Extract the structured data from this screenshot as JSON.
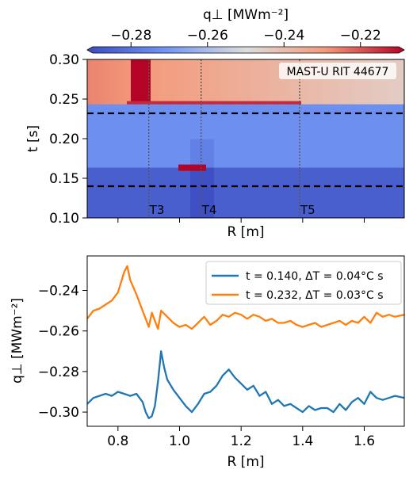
{
  "chart_data": [
    {
      "type": "heatmap",
      "title": "",
      "annotation": "MAST-U RIT 44677",
      "xlabel": "R [m]",
      "ylabel": "t [s]",
      "xlim": [
        0.7,
        1.73
      ],
      "ylim": [
        0.1,
        0.3
      ],
      "yticks": [
        0.1,
        0.15,
        0.2,
        0.25,
        0.3
      ],
      "ytick_labels": [
        "0.10",
        "0.15",
        "0.20",
        "0.25",
        "0.30"
      ],
      "colorbar": {
        "label": "q⊥ [MWm⁻²]",
        "range": [
          -0.29,
          -0.21
        ],
        "ticks": [
          -0.28,
          -0.26,
          -0.24,
          -0.22
        ],
        "tick_labels": [
          "−0.28",
          "−0.26",
          "−0.24",
          "−0.22"
        ],
        "colormap": "coolwarm",
        "colors": [
          "#3b4cc0",
          "#dddddd",
          "#b40426"
        ]
      },
      "dashed_lines_t": [
        0.14,
        0.232
      ],
      "markers": [
        {
          "label": "T3",
          "R": 0.9
        },
        {
          "label": "T4",
          "R": 1.07
        },
        {
          "label": "T5",
          "R": 1.39
        }
      ],
      "bands": [
        {
          "t_range": [
            0.1,
            0.163
          ],
          "level": -0.285
        },
        {
          "t_range": [
            0.163,
            0.245
          ],
          "level": -0.272
        },
        {
          "t_range": [
            0.245,
            0.3
          ],
          "level": -0.245
        }
      ],
      "hot_spots": [
        {
          "R_range": [
            0.84,
            0.9
          ],
          "t_range": [
            0.245,
            0.3
          ],
          "value": -0.21
        },
        {
          "R_range": [
            0.83,
            1.4
          ],
          "t_range": [
            0.243,
            0.249
          ],
          "value": -0.215
        },
        {
          "R_range": [
            1.0,
            1.09
          ],
          "t_range": [
            0.161,
            0.168
          ],
          "value": -0.21
        }
      ]
    },
    {
      "type": "line",
      "xlabel": "R [m]",
      "ylabel": "q⊥ [MWm⁻²]",
      "xlim": [
        0.7,
        1.73
      ],
      "ylim": [
        -0.307,
        -0.223
      ],
      "xticks": [
        0.8,
        1.0,
        1.2,
        1.4,
        1.6
      ],
      "xtick_labels": [
        "0.8",
        "1.0",
        "1.2",
        "1.4",
        "1.6"
      ],
      "yticks": [
        -0.3,
        -0.28,
        -0.26,
        -0.24
      ],
      "ytick_labels": [
        "−0.30",
        "−0.28",
        "−0.26",
        "−0.24"
      ],
      "legend_position": "top-right",
      "series": [
        {
          "name": "t = 0.140, ΔT = 0.04°C s",
          "color": "#1f77b4",
          "x": [
            0.7,
            0.72,
            0.74,
            0.76,
            0.78,
            0.8,
            0.82,
            0.84,
            0.86,
            0.88,
            0.89,
            0.9,
            0.91,
            0.92,
            0.93,
            0.94,
            0.95,
            0.96,
            0.98,
            1.0,
            1.02,
            1.04,
            1.06,
            1.08,
            1.1,
            1.12,
            1.14,
            1.16,
            1.18,
            1.2,
            1.22,
            1.24,
            1.26,
            1.28,
            1.3,
            1.32,
            1.34,
            1.36,
            1.38,
            1.4,
            1.42,
            1.44,
            1.46,
            1.48,
            1.5,
            1.52,
            1.54,
            1.56,
            1.58,
            1.6,
            1.62,
            1.64,
            1.66,
            1.68,
            1.7,
            1.73
          ],
          "values": [
            -0.296,
            -0.293,
            -0.292,
            -0.291,
            -0.292,
            -0.29,
            -0.291,
            -0.292,
            -0.291,
            -0.295,
            -0.3,
            -0.303,
            -0.302,
            -0.297,
            -0.285,
            -0.27,
            -0.278,
            -0.284,
            -0.289,
            -0.293,
            -0.297,
            -0.3,
            -0.296,
            -0.291,
            -0.29,
            -0.287,
            -0.282,
            -0.279,
            -0.283,
            -0.286,
            -0.289,
            -0.287,
            -0.292,
            -0.29,
            -0.296,
            -0.294,
            -0.297,
            -0.296,
            -0.298,
            -0.3,
            -0.297,
            -0.299,
            -0.298,
            -0.298,
            -0.3,
            -0.296,
            -0.299,
            -0.295,
            -0.293,
            -0.296,
            -0.29,
            -0.293,
            -0.294,
            -0.293,
            -0.292,
            -0.293
          ]
        },
        {
          "name": "t = 0.232, ΔT = 0.03°C s",
          "color": "#ff7f0e",
          "x": [
            0.7,
            0.72,
            0.74,
            0.76,
            0.78,
            0.8,
            0.81,
            0.82,
            0.83,
            0.84,
            0.86,
            0.88,
            0.9,
            0.91,
            0.92,
            0.93,
            0.94,
            0.96,
            0.98,
            1.0,
            1.02,
            1.04,
            1.06,
            1.08,
            1.1,
            1.12,
            1.14,
            1.16,
            1.18,
            1.2,
            1.22,
            1.24,
            1.26,
            1.28,
            1.3,
            1.32,
            1.34,
            1.36,
            1.38,
            1.4,
            1.42,
            1.44,
            1.46,
            1.48,
            1.5,
            1.52,
            1.54,
            1.56,
            1.58,
            1.6,
            1.62,
            1.64,
            1.66,
            1.68,
            1.7,
            1.73
          ],
          "values": [
            -0.254,
            -0.25,
            -0.249,
            -0.247,
            -0.245,
            -0.241,
            -0.236,
            -0.231,
            -0.228,
            -0.235,
            -0.242,
            -0.25,
            -0.258,
            -0.251,
            -0.255,
            -0.259,
            -0.25,
            -0.253,
            -0.256,
            -0.258,
            -0.257,
            -0.259,
            -0.256,
            -0.253,
            -0.257,
            -0.255,
            -0.252,
            -0.253,
            -0.251,
            -0.252,
            -0.254,
            -0.252,
            -0.253,
            -0.255,
            -0.254,
            -0.256,
            -0.256,
            -0.255,
            -0.257,
            -0.258,
            -0.257,
            -0.256,
            -0.258,
            -0.257,
            -0.256,
            -0.255,
            -0.257,
            -0.255,
            -0.256,
            -0.253,
            -0.256,
            -0.251,
            -0.253,
            -0.252,
            -0.253,
            -0.252
          ]
        }
      ]
    }
  ]
}
